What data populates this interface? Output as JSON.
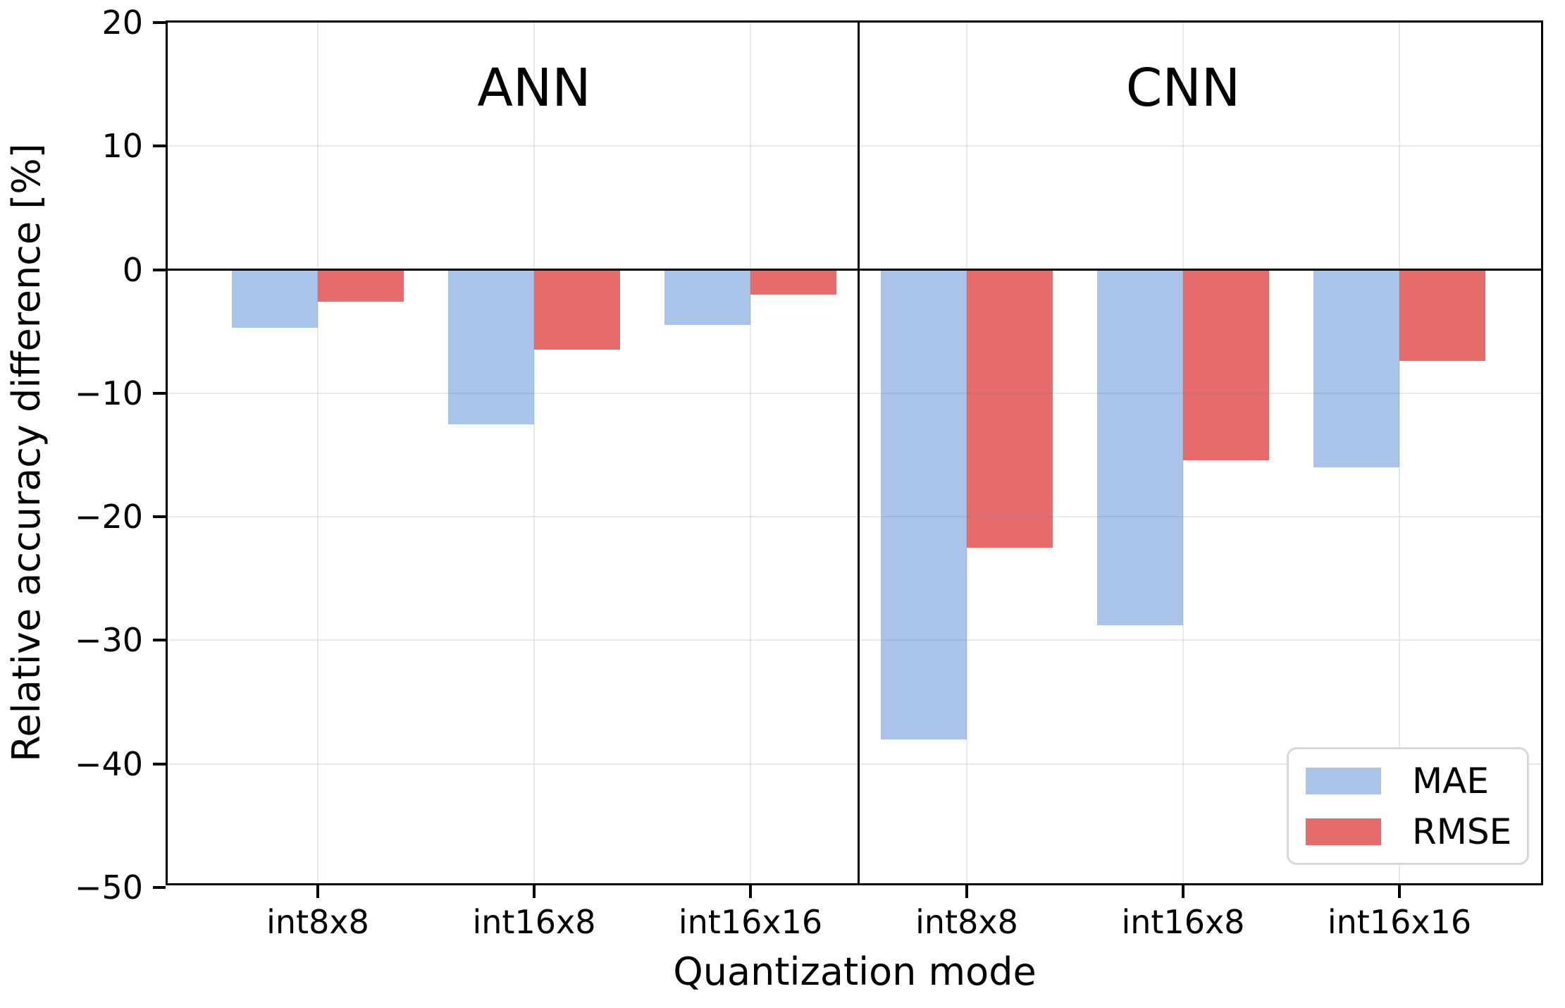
{
  "chart_data": {
    "type": "bar",
    "xlabel": "Quantization mode",
    "ylabel": "Relative accuracy difference [%]",
    "ylim": [
      -50,
      20
    ],
    "yticks": [
      20,
      10,
      0,
      -10,
      -20,
      -30,
      -40,
      -50
    ],
    "categories": [
      "int8x8",
      "int16x8",
      "int16x16"
    ],
    "grid": true,
    "panels": [
      {
        "title": "ANN",
        "series": [
          {
            "name": "MAE",
            "color": "#a9c4e8",
            "values": [
              -4.7,
              -12.5,
              -4.5
            ]
          },
          {
            "name": "RMSE",
            "color": "#e66c6b",
            "values": [
              -2.6,
              -6.5,
              -2.0
            ]
          }
        ]
      },
      {
        "title": "CNN",
        "series": [
          {
            "name": "MAE",
            "color": "#a9c4e8",
            "values": [
              -38.0,
              -28.8,
              -16.0
            ]
          },
          {
            "name": "RMSE",
            "color": "#e66c6b",
            "values": [
              -22.5,
              -15.4,
              -7.4
            ]
          }
        ]
      }
    ],
    "legend": {
      "position": "lower right",
      "entries": [
        {
          "label": "MAE",
          "color": "#a9c4e8"
        },
        {
          "label": "RMSE",
          "color": "#e66c6b"
        }
      ]
    }
  }
}
